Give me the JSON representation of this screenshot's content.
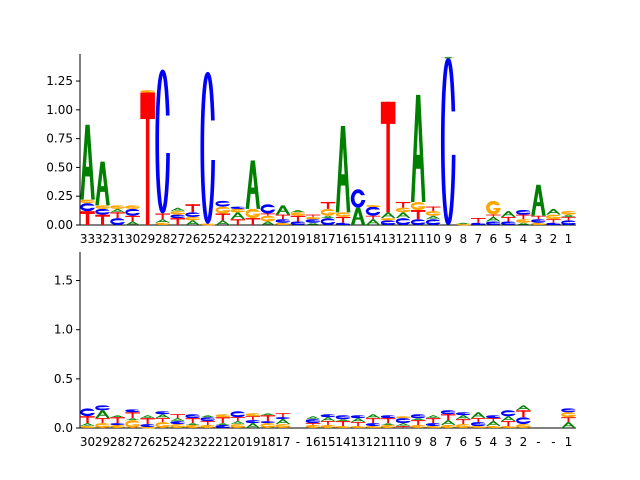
{
  "chart_data": [
    {
      "type": "sequence-logo",
      "title": "",
      "xlabel": "",
      "ylabel": "",
      "ylim": [
        0,
        1.45
      ],
      "yticks": [
        "0.00",
        "0.25",
        "0.50",
        "0.75",
        "1.00",
        "1.25"
      ],
      "positions": [
        "33",
        "32",
        "31",
        "30",
        "29",
        "28",
        "27",
        "26",
        "25",
        "24",
        "23",
        "22",
        "21",
        "20",
        "19",
        "18",
        "17",
        "16",
        "15",
        "14",
        "13",
        "12",
        "11",
        "10",
        "9",
        "8",
        "7",
        "6",
        "5",
        "4",
        "3",
        "2",
        "1"
      ],
      "letter_heights": [
        {
          "T": 0.12,
          "C": 0.07,
          "G": 0.03,
          "A": 0.65
        },
        {
          "T": 0.09,
          "C": 0.05,
          "G": 0.03,
          "A": 0.38
        },
        {
          "C": 0.06,
          "T": 0.05,
          "A": 0.03,
          "G": 0.03
        },
        {
          "A": 0.03,
          "T": 0.05,
          "C": 0.06,
          "G": 0.03
        },
        {
          "T": 1.15,
          "G": 0.02
        },
        {
          "G": 0.02,
          "A": 0.03,
          "T": 0.05,
          "C": 1.25
        },
        {
          "T": 0.06,
          "C": 0.03,
          "G": 0.03,
          "A": 0.03
        },
        {
          "A": 0.04,
          "G": 0.03,
          "C": 0.04,
          "T": 0.07
        },
        {
          "G": 0.01,
          "C": 1.32
        },
        {
          "A": 0.04,
          "T": 0.06,
          "G": 0.06,
          "C": 0.05
        },
        {
          "T": 0.05,
          "A": 0.06,
          "G": 0.03,
          "C": 0.02
        },
        {
          "T": 0.06,
          "G": 0.08,
          "A": 0.42
        },
        {
          "A": 0.03,
          "G": 0.05,
          "T": 0.02,
          "C": 0.08
        },
        {
          "G": 0.02,
          "C": 0.03,
          "T": 0.04,
          "A": 0.08
        },
        {
          "C": 0.03,
          "T": 0.05,
          "G": 0.03,
          "A": 0.02
        },
        {
          "A": 0.02,
          "C": 0.03,
          "G": 0.02,
          "T": 0.02
        },
        {
          "C": 0.06,
          "A": 0.02,
          "G": 0.06,
          "T": 0.06
        },
        {
          "C": 0.02,
          "T": 0.05,
          "G": 0.04,
          "A": 0.75
        },
        {
          "A": 0.15,
          "C": 0.16
        },
        {
          "A": 0.05,
          "T": 0.03,
          "C": 0.08,
          "G": 0.01
        },
        {
          "C": 0.04,
          "G": 0.02,
          "A": 0.05,
          "T": 0.96
        },
        {
          "C": 0.06,
          "A": 0.05,
          "G": 0.04,
          "T": 0.05
        },
        {
          "C": 0.05,
          "T": 0.08,
          "G": 0.07,
          "A": 0.93
        },
        {
          "C": 0.05,
          "A": 0.03,
          "G": 0.04,
          "T": 0.04
        },
        {
          "C": 1.45,
          "A": 0.01
        },
        {
          "G": 0.01,
          "A": 0.01
        },
        {
          "C": 0.02,
          "T": 0.04
        },
        {
          "C": 0.03,
          "A": 0.04,
          "T": 0.02,
          "G": 0.12
        },
        {
          "C": 0.03,
          "T": 0.04,
          "A": 0.05
        },
        {
          "A": 0.02,
          "G": 0.03,
          "T": 0.04,
          "C": 0.04
        },
        {
          "G": 0.02,
          "C": 0.03,
          "T": 0.03,
          "A": 0.27
        },
        {
          "C": 0.02,
          "T": 0.03,
          "G": 0.04,
          "A": 0.05
        },
        {
          "C": 0.04,
          "T": 0.03,
          "A": 0.02,
          "G": 0.03
        }
      ]
    },
    {
      "type": "sequence-logo",
      "title": "",
      "xlabel": "",
      "ylabel": "",
      "ylim": [
        0,
        1.75
      ],
      "yticks": [
        "0.0",
        "0.5",
        "1.0",
        "1.5"
      ],
      "positions": [
        "30",
        "29",
        "28",
        "27",
        "26",
        "25",
        "24",
        "23",
        "22",
        "21",
        "20",
        "19",
        "18",
        "17",
        "-",
        "16",
        "15",
        "14",
        "13",
        "12",
        "11",
        "10",
        "9",
        "8",
        "7",
        "6",
        "5",
        "4",
        "3",
        "2",
        "-",
        "-",
        "1"
      ],
      "letter_heights": [
        {
          "G": 0.02,
          "A": 0.03,
          "T": 0.07,
          "C": 0.08
        },
        {
          "G": 0.05,
          "T": 0.05,
          "A": 0.08,
          "C": 0.05
        },
        {
          "G": 0.03,
          "C": 0.02,
          "T": 0.06,
          "A": 0.02
        },
        {
          "G": 0.08,
          "A": 0.02,
          "T": 0.06,
          "C": 0.03
        },
        {
          "G": 0.01,
          "C": 0.03,
          "T": 0.06,
          "A": 0.03
        },
        {
          "G": 0.06,
          "T": 0.04,
          "A": 0.04,
          "C": 0.03
        },
        {
          "G": 0.04,
          "C": 0.03,
          "A": 0.03,
          "T": 0.04
        },
        {
          "G": 0.03,
          "A": 0.02,
          "T": 0.05,
          "C": 0.04
        },
        {
          "G": 0.03,
          "T": 0.04,
          "C": 0.04,
          "A": 0.02
        },
        {
          "C": 0.03,
          "A": 0.02,
          "T": 0.06,
          "G": 0.03
        },
        {
          "G": 0.04,
          "A": 0.03,
          "T": 0.04,
          "C": 0.06
        },
        {
          "A": 0.05,
          "C": 0.03,
          "T": 0.04,
          "G": 0.03
        },
        {
          "G": 0.05,
          "C": 0.02,
          "T": 0.06,
          "A": 0.02
        },
        {
          "G": 0.04,
          "A": 0.05,
          "C": 0.02,
          "T": 0.04
        },
        {},
        {
          "G": 0.03,
          "T": 0.02,
          "C": 0.04,
          "A": 0.03
        },
        {
          "G": 0.03,
          "T": 0.04,
          "A": 0.04,
          "C": 0.03
        },
        {
          "G": 0.02,
          "T": 0.05,
          "A": 0.02,
          "C": 0.04
        },
        {
          "G": 0.02,
          "T": 0.04,
          "A": 0.04,
          "C": 0.03
        },
        {
          "G": 0.02,
          "C": 0.03,
          "T": 0.05,
          "A": 0.04
        },
        {
          "G": 0.03,
          "A": 0.02,
          "T": 0.05,
          "C": 0.03
        },
        {
          "T": 0.02,
          "A": 0.03,
          "C": 0.05,
          "G": 0.02
        },
        {
          "G": 0.03,
          "T": 0.05,
          "A": 0.02,
          "C": 0.04
        },
        {
          "G": 0.02,
          "C": 0.03,
          "T": 0.05,
          "A": 0.03
        },
        {
          "G": 0.03,
          "A": 0.05,
          "T": 0.06,
          "C": 0.04
        },
        {
          "G": 0.04,
          "T": 0.05,
          "A": 0.04,
          "C": 0.03
        },
        {
          "G": 0.02,
          "C": 0.04,
          "T": 0.04,
          "A": 0.06
        },
        {
          "G": 0.02,
          "A": 0.05,
          "T": 0.03,
          "C": 0.03
        },
        {
          "G": 0.02,
          "T": 0.05,
          "A": 0.05,
          "C": 0.06
        },
        {
          "G": 0.04,
          "C": 0.07,
          "T": 0.07,
          "A": 0.05
        },
        {},
        {},
        {
          "A": 0.06,
          "T": 0.05,
          "G": 0.05,
          "C": 0.04
        }
      ]
    }
  ],
  "colors": {
    "A": "#008000",
    "C": "#0000ff",
    "G": "#ffa500",
    "T": "#ff0000",
    "text": "#000000",
    "background": "#ffffff"
  }
}
